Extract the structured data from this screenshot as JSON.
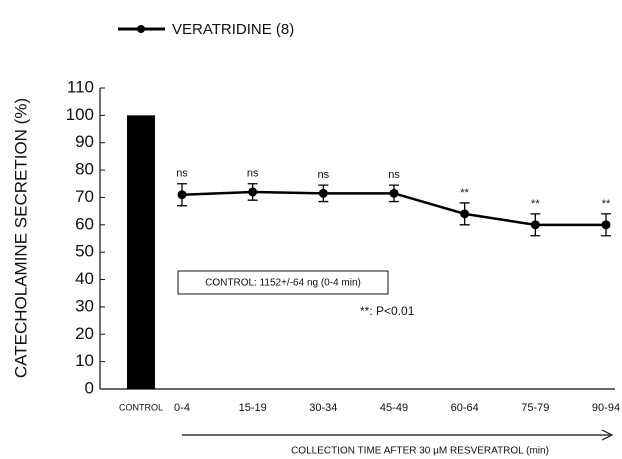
{
  "chart_data": {
    "type": "combo",
    "legend": "top-left",
    "categories": [
      "CONTROL",
      "0-4",
      "15-19",
      "30-34",
      "45-49",
      "60-64",
      "75-79",
      "90-94"
    ],
    "series": [
      {
        "type": "bar",
        "color": "#000000",
        "values": [
          100,
          null,
          null,
          null,
          null,
          null,
          null,
          null
        ]
      },
      {
        "type": "line",
        "name": "VERATRIDINE (8)",
        "color": "#000000",
        "values": [
          null,
          71,
          72,
          71.5,
          71.5,
          64,
          60,
          60
        ],
        "errors": [
          null,
          4,
          3,
          3,
          3,
          4,
          4,
          4
        ],
        "annotations": [
          null,
          "ns",
          "ns",
          "ns",
          "ns",
          "**",
          "**",
          "**"
        ]
      }
    ],
    "ylim": [
      0,
      110
    ],
    "yticks": [
      0,
      10,
      20,
      30,
      40,
      50,
      60,
      70,
      80,
      90,
      100,
      110
    ],
    "ylabel": "CATECHOLAMINE SECRETION (%)",
    "xlabel": "COLLECTION TIME AFTER 30 μM RESVERATROL (min)",
    "box_note": "CONTROL: 1152+/-64 ng (0-4 min)",
    "note": "**: P<0.01"
  }
}
